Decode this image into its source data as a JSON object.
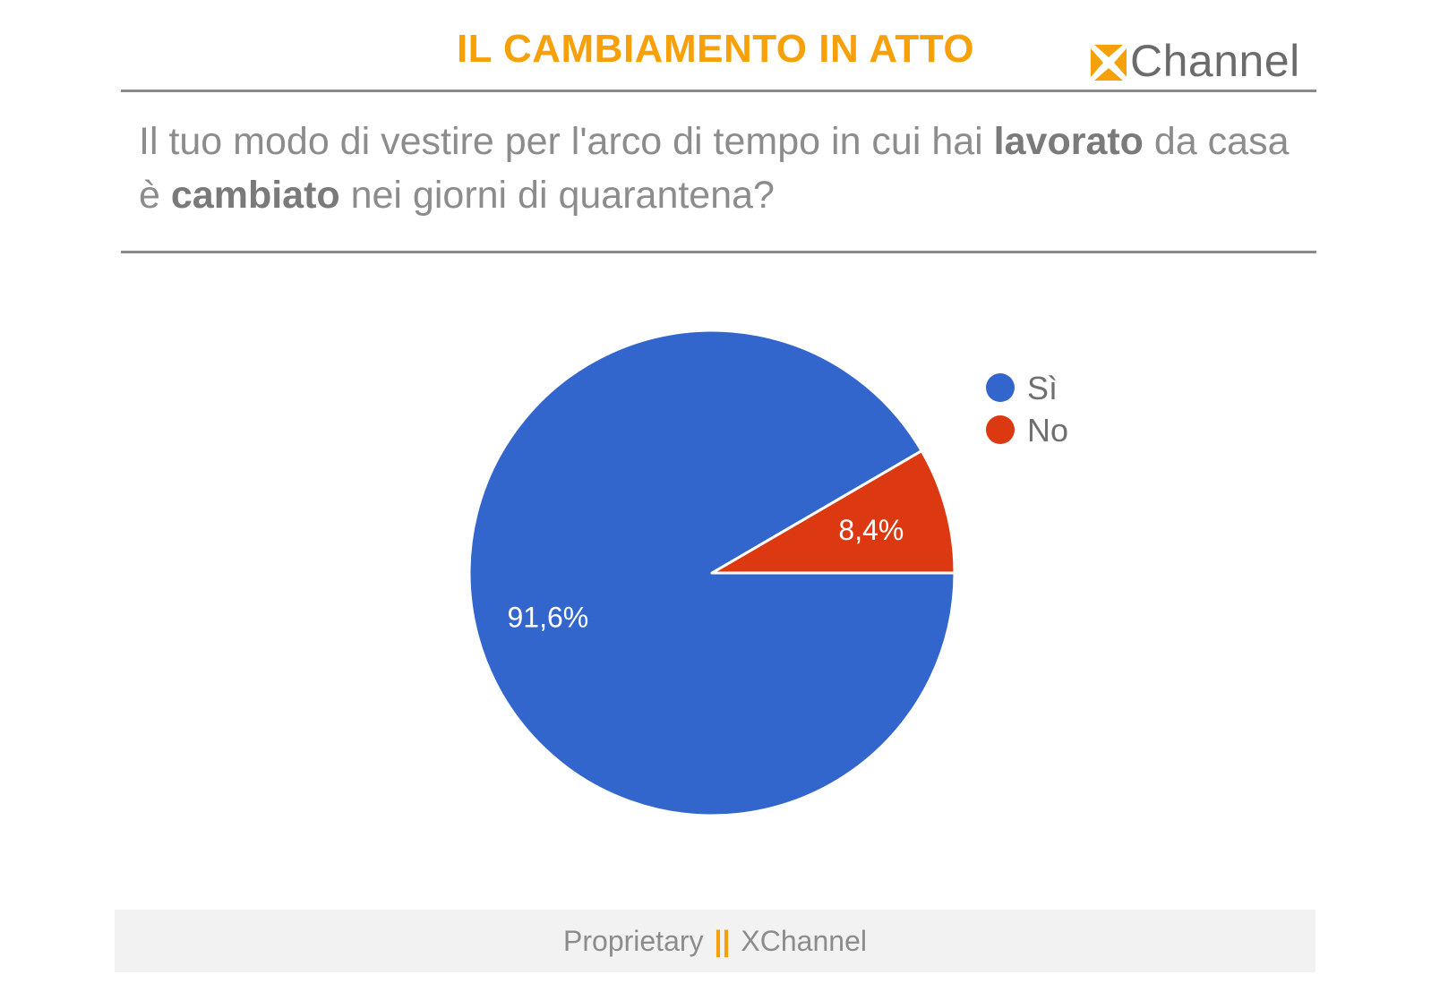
{
  "header": {
    "title": "IL CAMBIAMENTO IN ATTO",
    "logo_text": "Channel",
    "logo_mark_icon": "x-mark-icon",
    "accent_color": "#f7a10a"
  },
  "question": {
    "part1": "Il tuo modo di vestire per l'arco di tempo in cui hai ",
    "bold1": "lavorato",
    "part2": " da casa è ",
    "bold2": "cambiato",
    "part3": " nei giorni di quarantena?"
  },
  "chart_data": {
    "type": "pie",
    "title": "",
    "legend_position": "right",
    "slices": [
      {
        "label": "Sì",
        "value": 91.6,
        "display": "91,6%",
        "color": "#3366cc"
      },
      {
        "label": "No",
        "value": 8.4,
        "display": "8,4%",
        "color": "#dc3912"
      }
    ]
  },
  "footer": {
    "left": "Proprietary",
    "separator": "||",
    "right": "XChannel"
  }
}
